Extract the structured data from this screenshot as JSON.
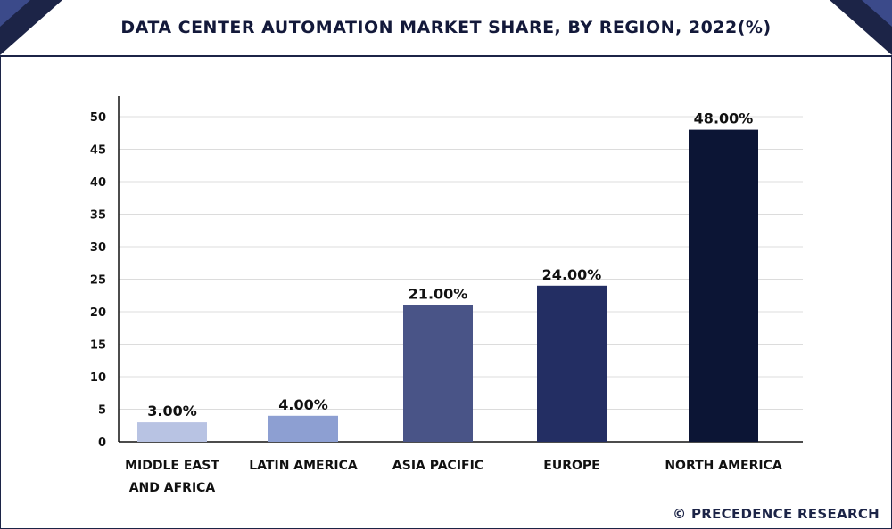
{
  "header": {
    "title": "DATA CENTER AUTOMATION MARKET SHARE, BY REGION, 2022(%)"
  },
  "footer": {
    "credit": "© PRECEDENCE RESEARCH"
  },
  "colors": {
    "header_band": "#1c2447",
    "corner_accent": "#3b4a8a",
    "bars": [
      "#b8c3e3",
      "#8d9fd2",
      "#495487",
      "#232e63",
      "#0c1535"
    ]
  },
  "chart_data": {
    "type": "bar",
    "title": "DATA CENTER AUTOMATION MARKET SHARE, BY REGION, 2022(%)",
    "categories": [
      [
        "MIDDLE EAST",
        "AND AFRICA"
      ],
      [
        "LATIN AMERICA"
      ],
      [
        "ASIA PACIFIC"
      ],
      [
        "EUROPE"
      ],
      [
        "NORTH AMERICA"
      ]
    ],
    "values": [
      3,
      4,
      21,
      24,
      48
    ],
    "data_labels": [
      "3.00%",
      "4.00%",
      "21.00%",
      "24.00%",
      "48.00%"
    ],
    "yticks": [
      0,
      5,
      10,
      15,
      20,
      25,
      30,
      35,
      40,
      45,
      50
    ],
    "ylim": [
      0,
      50
    ],
    "grid": true,
    "legend": "none"
  }
}
